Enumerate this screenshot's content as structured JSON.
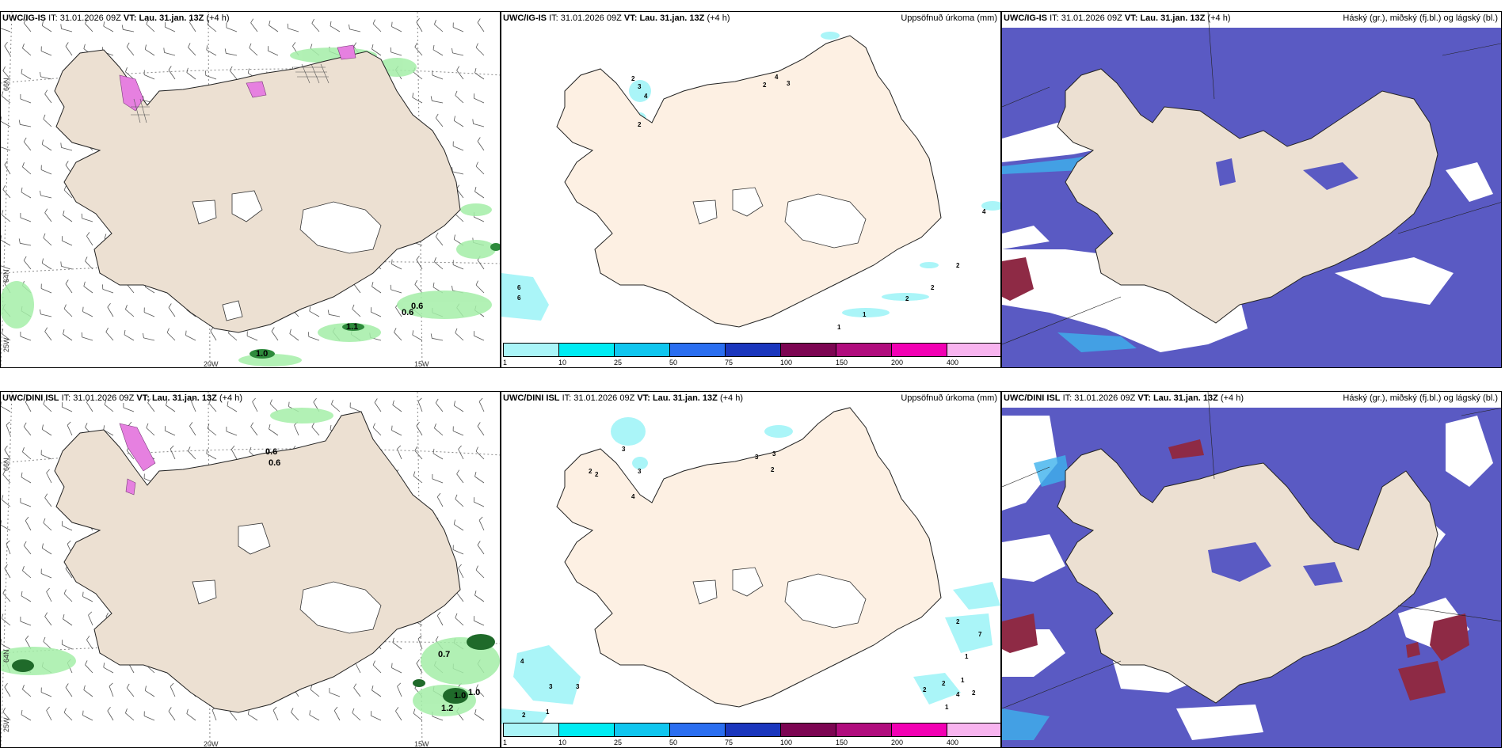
{
  "panels": {
    "p1": {
      "model": "UWC/IG-IS",
      "it_label": "IT:",
      "it_value": "31.01.2026 09Z",
      "vt_label": "VT:",
      "vt_value": "Lau. 31.jan. 13Z",
      "lead": "(+4 h)"
    },
    "p2": {
      "model": "UWC/IG-IS",
      "it_label": "IT:",
      "it_value": "31.01.2026 09Z",
      "vt_label": "VT:",
      "vt_value": "Lau. 31.jan. 13Z",
      "lead": "(+4 h)",
      "right_title": "Uppsöfnuð úrkoma (mm)"
    },
    "p3": {
      "model": "UWC/IG-IS",
      "it_label": "IT:",
      "it_value": "31.01.2026 09Z",
      "vt_label": "VT:",
      "vt_value": "Lau. 31.jan. 13Z",
      "lead": "(+4 h)",
      "right_title": "Háský (gr.), miðský (fj.bl.) og lágský (bl.)"
    },
    "p4": {
      "model": "UWC/DINI ISL",
      "it_label": "IT:",
      "it_value": "31.01.2026 09Z",
      "vt_label": "VT:",
      "vt_value": "Lau. 31.jan. 13Z",
      "lead": "(+4 h)"
    },
    "p5": {
      "model": "UWC/DINI ISL",
      "it_label": "IT:",
      "it_value": "31.01.2026 09Z",
      "vt_label": "VT:",
      "vt_value": "Lau. 31.jan. 13Z",
      "lead": "(+4 h)",
      "right_title": "Uppsöfnuð úrkoma (mm)"
    },
    "p6": {
      "model": "UWC/DINI ISL",
      "it_label": "IT:",
      "it_value": "31.01.2026 09Z",
      "vt_label": "VT:",
      "vt_value": "Lau. 31.jan. 13Z",
      "lead": "(+4 h)",
      "right_title": "Háský (gr.), miðský (fj.bl.) og lágský (bl.)"
    }
  },
  "graticule": {
    "lon_20": "20W",
    "lon_15": "15W",
    "lat_66": "66N",
    "lat_64": "64N",
    "lon_25": "25W"
  },
  "wind_values": {
    "top": [
      "0.6",
      "0.6",
      "1.1",
      "1.0"
    ],
    "bottom": [
      "0.6",
      "0.6",
      "0.7",
      "1.0",
      "1.0",
      "1.2"
    ]
  },
  "precip_values": {
    "top": [
      "2",
      "3",
      "4",
      "2",
      "4",
      "3",
      "2",
      "4",
      "6",
      "6",
      "2",
      "2",
      "2",
      "1",
      "1"
    ],
    "bottom": [
      "2",
      "2",
      "3",
      "3",
      "4",
      "3",
      "3",
      "2",
      "2",
      "7",
      "1",
      "1",
      "2",
      "2",
      "4",
      "2",
      "1",
      "4",
      "3",
      "3",
      "2",
      "1"
    ]
  },
  "colorbar": {
    "ticks": [
      "1",
      "10",
      "25",
      "50",
      "75",
      "100",
      "150",
      "200",
      "400",
      ""
    ],
    "colors": [
      "#aaf5f8",
      "#00ecf3",
      "#10c6ef",
      "#2a6ef0",
      "#1a36bd",
      "#7c0552",
      "#b00c7d",
      "#f200b3",
      "#f8b4ef"
    ]
  },
  "colors": {
    "land": "#ece0d2",
    "land_light": "#fdf0e3",
    "cloud_mid": "#5757bf",
    "cloud_low": "#3db1ec",
    "cloud_high": "#8e2a45",
    "precip_green": "#86e58a",
    "snow_pink": "#e680e0"
  }
}
